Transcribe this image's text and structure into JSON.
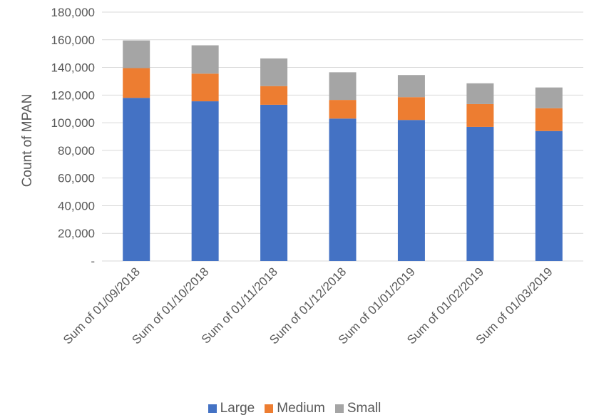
{
  "chart_data": {
    "type": "bar",
    "stacked": true,
    "title": "",
    "xlabel": "",
    "ylabel": "Count of MPAN",
    "ylim": [
      0,
      180000
    ],
    "yticks": [
      0,
      20000,
      40000,
      60000,
      80000,
      100000,
      120000,
      140000,
      160000,
      180000
    ],
    "ytick_labels": [
      "-",
      "20,000",
      "40,000",
      "60,000",
      "80,000",
      "100,000",
      "120,000",
      "140,000",
      "160,000",
      "180,000"
    ],
    "grid": true,
    "legend_position": "bottom",
    "categories": [
      "Sum of 01/09/2018",
      "Sum of 01/10/2018",
      "Sum of 01/11/2018",
      "Sum of 01/12/2018",
      "Sum of 01/01/2019",
      "Sum of 01/02/2019",
      "Sum of 01/03/2019"
    ],
    "series": [
      {
        "name": "Large",
        "color": "#4472C4",
        "values": [
          118000,
          115500,
          113000,
          103000,
          102000,
          97000,
          94000
        ]
      },
      {
        "name": "Medium",
        "color": "#ED7D31",
        "values": [
          21500,
          20000,
          13500,
          13500,
          16500,
          16500,
          16500
        ]
      },
      {
        "name": "Small",
        "color": "#A5A5A5",
        "values": [
          20000,
          20500,
          20000,
          20000,
          16000,
          15000,
          15000
        ]
      }
    ]
  }
}
